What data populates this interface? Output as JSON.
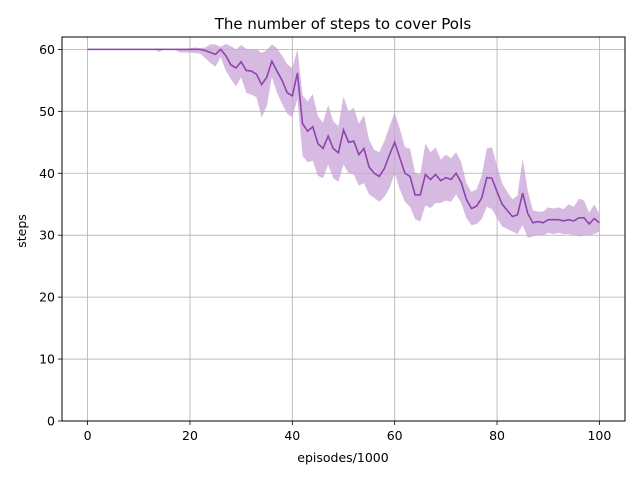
{
  "chart_data": {
    "type": "line",
    "title": "The number of steps to cover PoIs",
    "xlabel": "episodes/1000",
    "ylabel": "steps",
    "xlim": [
      -5,
      105
    ],
    "ylim": [
      0,
      62
    ],
    "xticks": [
      0,
      20,
      40,
      60,
      80,
      100
    ],
    "yticks": [
      0,
      10,
      20,
      30,
      40,
      50,
      60
    ],
    "grid": true,
    "colors": {
      "line": "#8e44ad",
      "band": "#c9a3d8"
    },
    "series": [
      {
        "x": [
          0,
          1,
          2,
          3,
          4,
          5,
          6,
          7,
          8,
          9,
          10,
          11,
          12,
          13,
          14,
          15,
          16,
          17,
          18,
          19,
          20,
          21,
          22,
          23,
          24,
          25,
          26,
          27,
          28,
          29,
          30,
          31,
          32,
          33,
          34,
          35,
          36,
          37,
          38,
          39,
          40,
          41,
          42,
          43,
          44,
          45,
          46,
          47,
          48,
          49,
          50,
          51,
          52,
          53,
          54,
          55,
          56,
          57,
          58,
          59,
          60,
          61,
          62,
          63,
          64,
          65,
          66,
          67,
          68,
          69,
          70,
          71,
          72,
          73,
          74,
          75,
          76,
          77,
          78,
          79,
          80,
          81,
          82,
          83,
          84,
          85,
          86,
          87,
          88,
          89,
          90,
          91,
          92,
          93,
          94,
          95,
          96,
          97,
          98,
          99,
          100
        ],
        "y": [
          60,
          60,
          60,
          60,
          60,
          60,
          60,
          60,
          60,
          60,
          60,
          60,
          60,
          60,
          60,
          60,
          60,
          60,
          60,
          60,
          60,
          60,
          60,
          59.8,
          59.5,
          59.2,
          60,
          59,
          57.5,
          57,
          58,
          56.6,
          56.5,
          56,
          54.3,
          55.5,
          58.1,
          56.5,
          55,
          53,
          52.5,
          56.2,
          48,
          46.8,
          47.5,
          44.8,
          44,
          46,
          44,
          43.3,
          47,
          45,
          45.2,
          43,
          44,
          41,
          40,
          39.5,
          40.8,
          43,
          45,
          42.5,
          40,
          39.5,
          36.5,
          36.5,
          39.8,
          39,
          39.8,
          38.8,
          39.3,
          39,
          40,
          38.5,
          35.8,
          34.3,
          34.7,
          36,
          39.3,
          39.2,
          37,
          35,
          34,
          33,
          33.3,
          36.8,
          33.5,
          32,
          32.2,
          32,
          32.5,
          32.5,
          32.5,
          32.3,
          32.5,
          32.3,
          32.8,
          32.8,
          31.8,
          32.7,
          32
        ],
        "lower": [
          60,
          60,
          60,
          60,
          60,
          60,
          60,
          60,
          60,
          60,
          60,
          60,
          60,
          60,
          59.6,
          60,
          60,
          60,
          59.5,
          59.5,
          59.5,
          59.4,
          59.3,
          58.6,
          57.8,
          57.2,
          58.8,
          56.6,
          55.2,
          54,
          55.5,
          53,
          52.7,
          52.3,
          49,
          50.8,
          55.5,
          53,
          51.2,
          49.6,
          49,
          52,
          42.8,
          41.8,
          42,
          39.6,
          39.2,
          41.4,
          39.2,
          38.6,
          41.4,
          40,
          39.8,
          38,
          38.4,
          36.6,
          36,
          35.4,
          36.2,
          37.6,
          40,
          37.4,
          35.4,
          34.6,
          32.6,
          32.2,
          34.8,
          34.4,
          35.2,
          35.2,
          35.6,
          35.4,
          36.6,
          35.2,
          32.8,
          31.6,
          31.8,
          32.6,
          34.6,
          34.2,
          32.8,
          31.4,
          31,
          30.6,
          30.2,
          31.6,
          29.6,
          29.8,
          30,
          30,
          30.4,
          30.2,
          30.4,
          30.2,
          30.2,
          30,
          29.8,
          29.9,
          30,
          30.2,
          30.6
        ],
        "upper": [
          60,
          60,
          60,
          60,
          60,
          60,
          60,
          60,
          60,
          60,
          60,
          60,
          60,
          60,
          60,
          60,
          60,
          60,
          60,
          60,
          60.2,
          60.3,
          60.2,
          60.3,
          60.8,
          60.8,
          60.4,
          60.9,
          60.5,
          60,
          60.7,
          60.1,
          60,
          60.1,
          59.4,
          59.9,
          60.8,
          60.2,
          59,
          57.6,
          57,
          60,
          52.6,
          51.6,
          52.8,
          49.2,
          48.2,
          51,
          48.4,
          47.6,
          52.4,
          50,
          50.6,
          48,
          49.4,
          45.4,
          43.8,
          43.4,
          45.2,
          47.6,
          49.8,
          47.2,
          44.2,
          44,
          40,
          39.8,
          44.8,
          43.4,
          44.2,
          42.2,
          43,
          42.4,
          43.4,
          41.8,
          38.4,
          37,
          37.4,
          39.6,
          44,
          44.2,
          41.2,
          38.4,
          37,
          35.8,
          36.4,
          42.4,
          37.2,
          34,
          33.8,
          33.8,
          34.5,
          34.3,
          34.5,
          34.2,
          35,
          34.6,
          35.9,
          35.6,
          33.6,
          35,
          33.4
        ]
      }
    ]
  }
}
